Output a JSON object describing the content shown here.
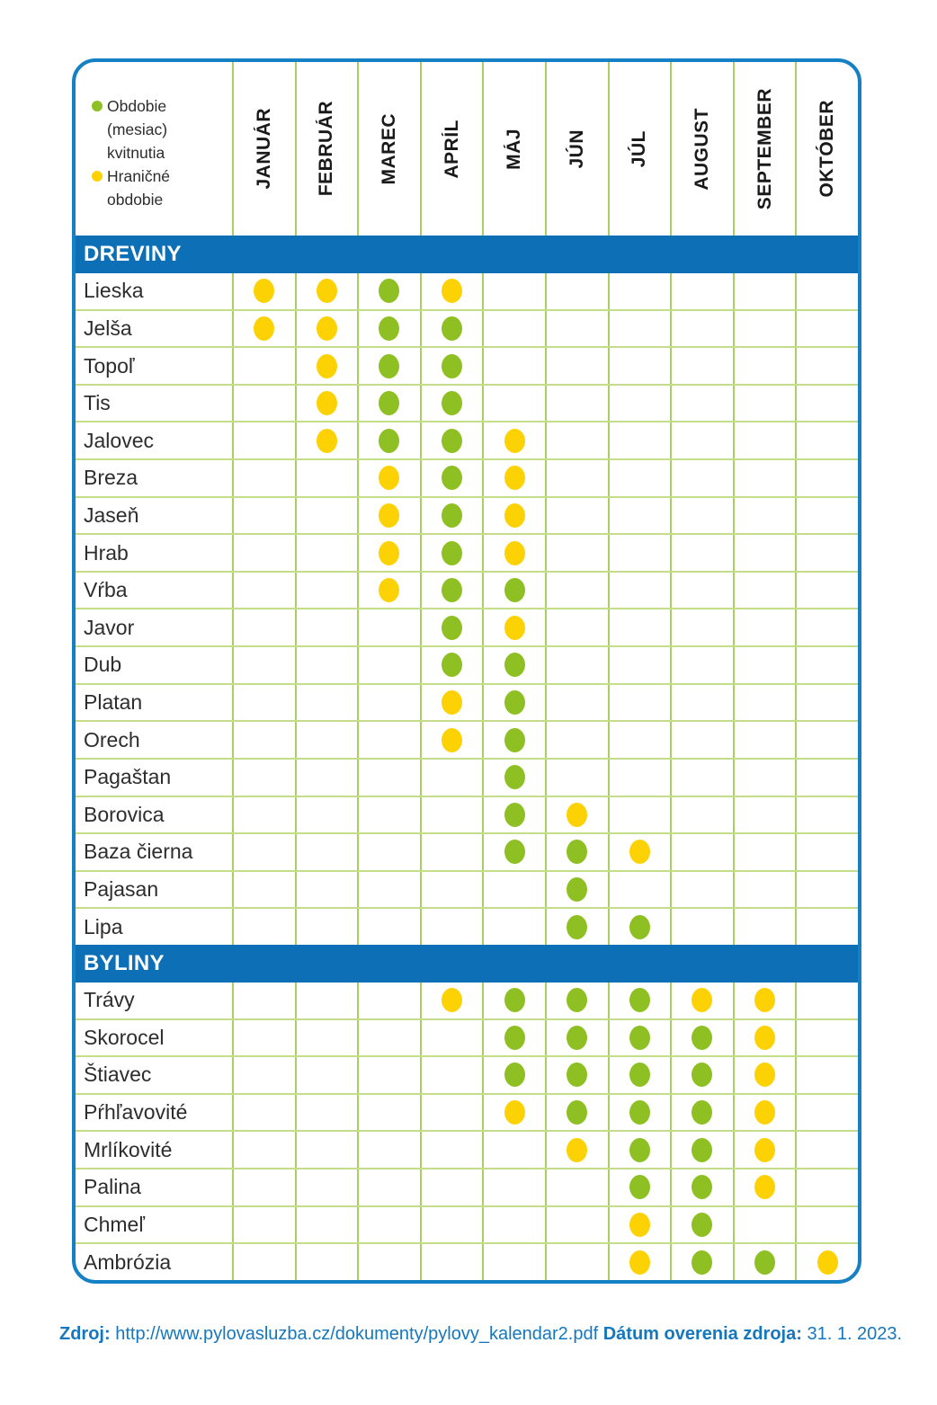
{
  "colors": {
    "green": "#8fc023",
    "yellow": "#fdd205",
    "blue_bar": "#0d6fb6",
    "border_blue": "#1580c4",
    "grid_vertical": "#a9d05f",
    "grid_horizontal": "#c3dd88",
    "label_text": "#2d2d2d",
    "footer_blue": "#1577bd"
  },
  "legend": {
    "items": [
      {
        "type": "green",
        "label": "Obdobie (mesiac) kvitnutia"
      },
      {
        "type": "yellow",
        "label": "Hraničné obdobie"
      }
    ]
  },
  "months": [
    "JANUÁR",
    "FEBRUÁR",
    "MAREC",
    "APRÍL",
    "MÁJ",
    "JÚN",
    "JÚL",
    "AUGUST",
    "SEPTEMBER",
    "OKTÓBER"
  ],
  "chart_data": {
    "type": "table",
    "columns": [
      "JANUÁR",
      "FEBRUÁR",
      "MAREC",
      "APRÍL",
      "MÁJ",
      "JÚN",
      "JÚL",
      "AUGUST",
      "SEPTEMBER",
      "OKTÓBER"
    ],
    "cell_legend": {
      "G": "Obdobie (mesiac) kvitnutia",
      "Y": "Hraničné obdobie"
    },
    "sections": [
      {
        "title": "DREVINY",
        "rows": [
          {
            "name": "Lieska",
            "dots": [
              "Y",
              "Y",
              "G",
              "Y",
              "",
              "",
              "",
              "",
              "",
              ""
            ]
          },
          {
            "name": "Jelša",
            "dots": [
              "Y",
              "Y",
              "G",
              "G",
              "",
              "",
              "",
              "",
              "",
              ""
            ]
          },
          {
            "name": "Topoľ",
            "dots": [
              "",
              "Y",
              "G",
              "G",
              "",
              "",
              "",
              "",
              "",
              ""
            ]
          },
          {
            "name": "Tis",
            "dots": [
              "",
              "Y",
              "G",
              "G",
              "",
              "",
              "",
              "",
              "",
              ""
            ]
          },
          {
            "name": "Jalovec",
            "dots": [
              "",
              "Y",
              "G",
              "G",
              "Y",
              "",
              "",
              "",
              "",
              ""
            ]
          },
          {
            "name": "Breza",
            "dots": [
              "",
              "",
              "Y",
              "G",
              "Y",
              "",
              "",
              "",
              "",
              ""
            ]
          },
          {
            "name": "Jaseň",
            "dots": [
              "",
              "",
              "Y",
              "G",
              "Y",
              "",
              "",
              "",
              "",
              ""
            ]
          },
          {
            "name": "Hrab",
            "dots": [
              "",
              "",
              "Y",
              "G",
              "Y",
              "",
              "",
              "",
              "",
              ""
            ]
          },
          {
            "name": "Vŕba",
            "dots": [
              "",
              "",
              "Y",
              "G",
              "G",
              "",
              "",
              "",
              "",
              ""
            ]
          },
          {
            "name": "Javor",
            "dots": [
              "",
              "",
              "",
              "G",
              "Y",
              "",
              "",
              "",
              "",
              ""
            ]
          },
          {
            "name": "Dub",
            "dots": [
              "",
              "",
              "",
              "G",
              "G",
              "",
              "",
              "",
              "",
              ""
            ]
          },
          {
            "name": "Platan",
            "dots": [
              "",
              "",
              "",
              "Y",
              "G",
              "",
              "",
              "",
              "",
              ""
            ]
          },
          {
            "name": "Orech",
            "dots": [
              "",
              "",
              "",
              "Y",
              "G",
              "",
              "",
              "",
              "",
              ""
            ]
          },
          {
            "name": "Pagaštan",
            "dots": [
              "",
              "",
              "",
              "",
              "G",
              "",
              "",
              "",
              "",
              ""
            ]
          },
          {
            "name": "Borovica",
            "dots": [
              "",
              "",
              "",
              "",
              "G",
              "Y",
              "",
              "",
              "",
              ""
            ]
          },
          {
            "name": "Baza čierna",
            "dots": [
              "",
              "",
              "",
              "",
              "G",
              "G",
              "Y",
              "",
              "",
              ""
            ]
          },
          {
            "name": "Pajasan",
            "dots": [
              "",
              "",
              "",
              "",
              "",
              "G",
              "",
              "",
              "",
              ""
            ]
          },
          {
            "name": "Lipa",
            "dots": [
              "",
              "",
              "",
              "",
              "",
              "G",
              "G",
              "",
              "",
              ""
            ]
          }
        ]
      },
      {
        "title": "BYLINY",
        "rows": [
          {
            "name": "Trávy",
            "dots": [
              "",
              "",
              "",
              "Y",
              "G",
              "G",
              "G",
              "Y",
              "Y",
              ""
            ]
          },
          {
            "name": "Skorocel",
            "dots": [
              "",
              "",
              "",
              "",
              "G",
              "G",
              "G",
              "G",
              "Y",
              ""
            ]
          },
          {
            "name": "Štiavec",
            "dots": [
              "",
              "",
              "",
              "",
              "G",
              "G",
              "G",
              "G",
              "Y",
              ""
            ]
          },
          {
            "name": "Pŕhľavovité",
            "dots": [
              "",
              "",
              "",
              "",
              "Y",
              "G",
              "G",
              "G",
              "Y",
              ""
            ]
          },
          {
            "name": "Mrlíkovité",
            "dots": [
              "",
              "",
              "",
              "",
              "",
              "Y",
              "G",
              "G",
              "Y",
              ""
            ]
          },
          {
            "name": "Palina",
            "dots": [
              "",
              "",
              "",
              "",
              "",
              "",
              "G",
              "G",
              "Y",
              ""
            ]
          },
          {
            "name": "Chmeľ",
            "dots": [
              "",
              "",
              "",
              "",
              "",
              "",
              "Y",
              "G",
              "",
              ""
            ]
          },
          {
            "name": "Ambrózia",
            "dots": [
              "",
              "",
              "",
              "",
              "",
              "",
              "Y",
              "G",
              "G",
              "Y"
            ]
          }
        ]
      }
    ]
  },
  "footer": {
    "segments": [
      {
        "name": "footer-source-label",
        "text": "Zdroj:",
        "bold": true
      },
      {
        "name": "footer-source-url",
        "text": " http://www.pylovasluzba.cz/dokumenty/pylovy_kalendar2.pdf ",
        "bold": false
      },
      {
        "name": "footer-date-label",
        "text": "Dátum overenia zdroja:",
        "bold": true
      },
      {
        "name": "footer-date-value",
        "text": " 31. 1. 2023.",
        "bold": false
      }
    ]
  }
}
